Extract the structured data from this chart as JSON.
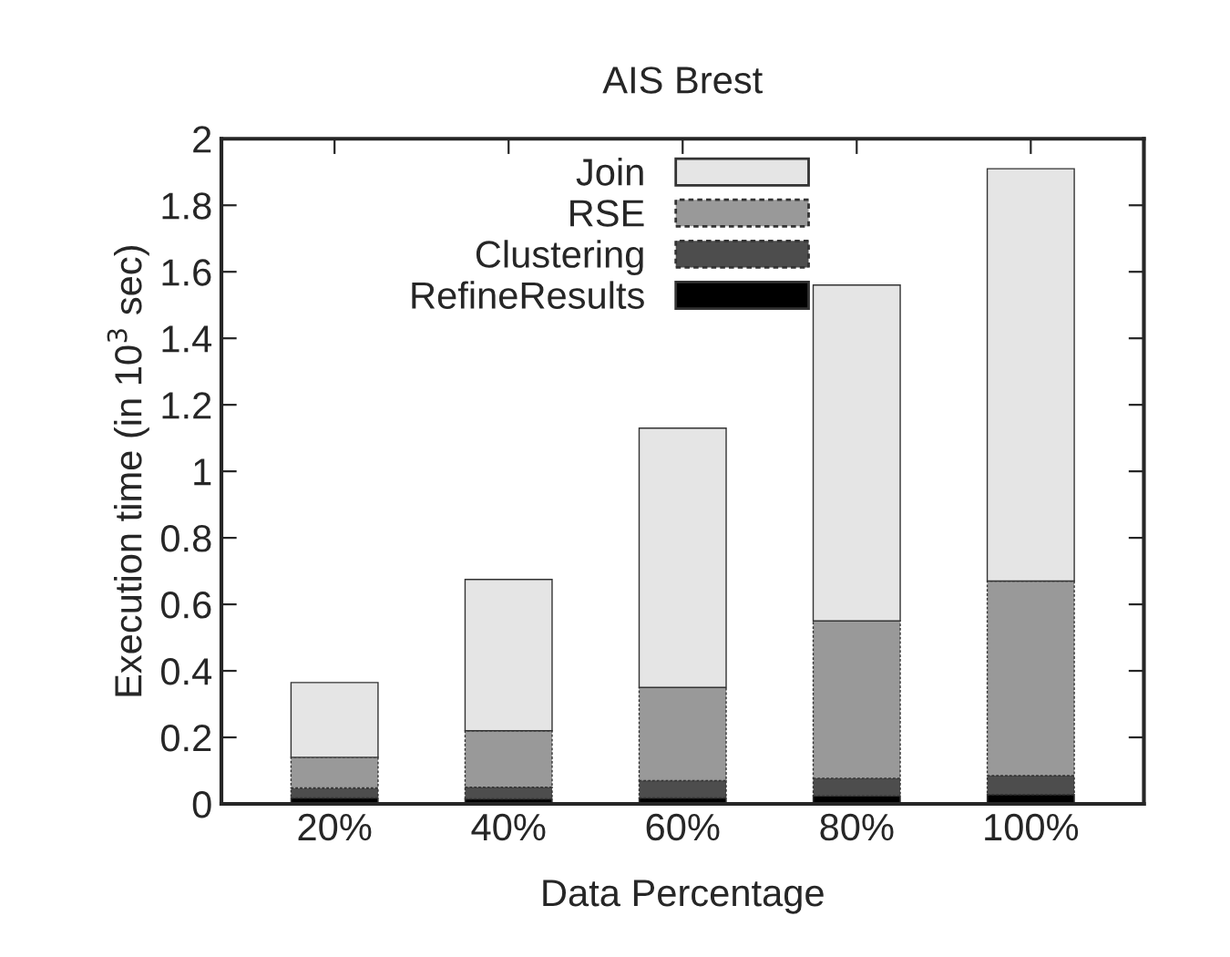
{
  "chart_data": {
    "type": "bar",
    "stacked": true,
    "title": "AIS Brest",
    "xlabel": "Data Percentage",
    "ylabel": "Execution time (in 10$^{3}$ sec)",
    "categories": [
      "20%",
      "40%",
      "60%",
      "80%",
      "100%"
    ],
    "series": [
      {
        "name": "RefineResults",
        "color": "#000000",
        "values": [
          0.018,
          0.015,
          0.018,
          0.024,
          0.028
        ]
      },
      {
        "name": "Clustering",
        "color": "#4d4d4d",
        "values": [
          0.03,
          0.035,
          0.052,
          0.053,
          0.057
        ]
      },
      {
        "name": "RSE",
        "color": "#999999",
        "values": [
          0.092,
          0.17,
          0.28,
          0.473,
          0.585
        ]
      },
      {
        "name": "Join",
        "color": "#e5e5e5",
        "values": [
          0.225,
          0.455,
          0.78,
          1.01,
          1.24
        ]
      }
    ],
    "ylim": [
      0,
      2
    ],
    "yticks": [
      0,
      {
        "value": 0.2,
        "label": "0.2"
      },
      {
        "value": 0.4,
        "label": "0.4"
      },
      {
        "value": 0.6,
        "label": "0.6"
      },
      {
        "value": 0.8,
        "label": "0.8"
      },
      1,
      {
        "value": 1.2,
        "label": "1.2"
      },
      {
        "value": 1.4,
        "label": "1.4"
      },
      {
        "value": 1.6,
        "label": "1.6"
      },
      {
        "value": 1.8,
        "label": "1.8"
      },
      2
    ],
    "legend": "top",
    "grid": false
  }
}
